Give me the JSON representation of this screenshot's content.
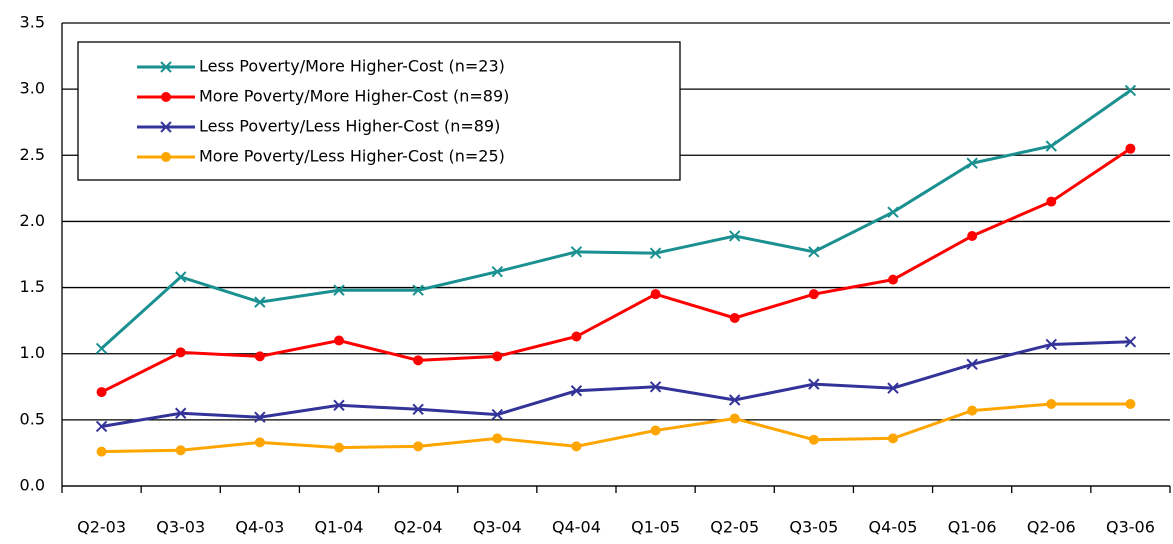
{
  "chart_data": {
    "type": "line",
    "categories": [
      "Q2-03",
      "Q3-03",
      "Q4-03",
      "Q1-04",
      "Q2-04",
      "Q3-04",
      "Q4-04",
      "Q1-05",
      "Q2-05",
      "Q3-05",
      "Q4-05",
      "Q1-06",
      "Q2-06",
      "Q3-06"
    ],
    "series": [
      {
        "name": "Less Poverty/More Higher-Cost (n=23)",
        "color": "#1a9090",
        "marker": "x",
        "values": [
          1.04,
          1.58,
          1.39,
          1.48,
          1.48,
          1.62,
          1.77,
          1.76,
          1.89,
          1.77,
          2.07,
          2.44,
          2.57,
          2.99
        ]
      },
      {
        "name": "More Poverty/More Higher-Cost (n=89)",
        "color": "#ff0000",
        "marker": "o",
        "values": [
          0.71,
          1.01,
          0.98,
          1.1,
          0.95,
          0.98,
          1.13,
          1.45,
          1.27,
          1.45,
          1.56,
          1.89,
          2.15,
          2.55
        ]
      },
      {
        "name": "Less Poverty/Less Higher-Cost (n=89)",
        "color": "#333399",
        "marker": "x",
        "values": [
          0.45,
          0.55,
          0.52,
          0.61,
          0.58,
          0.54,
          0.72,
          0.75,
          0.65,
          0.77,
          0.74,
          0.92,
          1.07,
          1.09
        ]
      },
      {
        "name": "More Poverty/Less Higher-Cost (n=25)",
        "color": "#ffa500",
        "marker": "o",
        "values": [
          0.26,
          0.27,
          0.33,
          0.29,
          0.3,
          0.36,
          0.3,
          0.42,
          0.51,
          0.35,
          0.36,
          0.57,
          0.62,
          0.62
        ]
      }
    ],
    "ylim": [
      0,
      3.5
    ],
    "yticks": [
      {
        "value": 0,
        "label": "0.0"
      },
      0.5,
      {
        "value": 1,
        "label": "1.0"
      },
      1.5,
      {
        "value": 2,
        "label": "2.0"
      },
      2.5,
      {
        "value": 3,
        "label": "3.0"
      },
      3.5
    ],
    "grid": true,
    "legend": "upper-left"
  }
}
